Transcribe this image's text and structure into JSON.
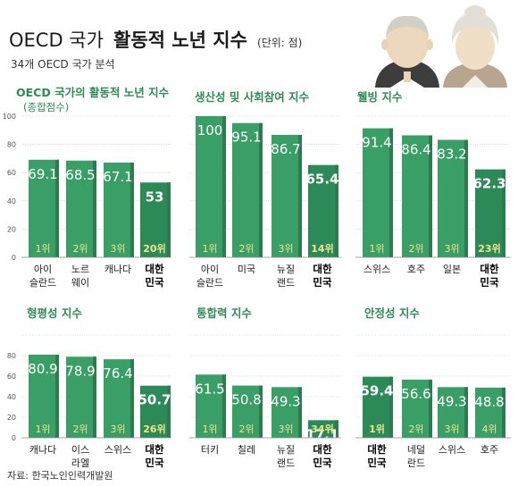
{
  "header": {
    "title_prefix": "OECD 국가",
    "title_bold": "활동적 노년 지수",
    "unit": "(단위: 점)",
    "subtitle": "34개 OECD 국가 분석"
  },
  "source": "자료: 한국노인인력개발원",
  "colors": {
    "bar": "#3a9f67",
    "bar_side": "#2c7c50",
    "bar_korea": "#2b8a57",
    "rank_text": "#f0e68c",
    "heading": "#2e8b57",
    "grid": "#cfcfcf"
  },
  "chart_data": [
    {
      "type": "bar",
      "title": "OECD 국가의 활동적 노년 지수",
      "subtitle": "(종합점수)",
      "categories": [
        "아이\n슬란드",
        "노르\n웨이",
        "캐나다",
        "대한\n민국"
      ],
      "values": [
        69.1,
        68.5,
        67.1,
        53
      ],
      "ranks": [
        "1위",
        "2위",
        "3위",
        "20위"
      ],
      "ylim": [
        0,
        100
      ],
      "yticks": [
        0,
        20,
        40,
        60,
        80,
        100
      ]
    },
    {
      "type": "bar",
      "title": "생산성 및 사회참여 지수",
      "categories": [
        "아이\n슬란드",
        "미국",
        "뉴질\n랜드",
        "대한\n민국"
      ],
      "values": [
        100,
        95.1,
        86.7,
        65.4
      ],
      "ranks": [
        "1위",
        "2위",
        "3위",
        "14위"
      ],
      "ylim": [
        0,
        100
      ]
    },
    {
      "type": "bar",
      "title": "웰빙 지수",
      "categories": [
        "스위스",
        "호주",
        "일본",
        "대한\n민국"
      ],
      "values": [
        91.4,
        86.4,
        83.2,
        62.3
      ],
      "ranks": [
        "1위",
        "2위",
        "3위",
        "23위"
      ],
      "ylim": [
        0,
        100
      ]
    },
    {
      "type": "bar",
      "title": "형평성 지수",
      "categories": [
        "캐나다",
        "이스\n라엘",
        "스위스",
        "대한\n민국"
      ],
      "values": [
        80.9,
        78.9,
        76.4,
        50.7
      ],
      "ranks": [
        "1위",
        "2위",
        "3위",
        "26위"
      ],
      "ylim": [
        0,
        100
      ],
      "yticks": [
        0,
        20,
        40,
        60,
        80
      ]
    },
    {
      "type": "bar",
      "title": "통합력 지수",
      "categories": [
        "터키",
        "칠레",
        "뉴질\n랜드",
        "대한\n민국"
      ],
      "values": [
        61.5,
        50.8,
        49.3,
        17.1
      ],
      "ranks": [
        "1위",
        "2위",
        "3위",
        "34위"
      ],
      "ylim": [
        0,
        100
      ]
    },
    {
      "type": "bar",
      "title": "안정성 지수",
      "categories": [
        "대한\n민국",
        "네덜\n란드",
        "스위스",
        "호주"
      ],
      "values": [
        59.4,
        56.6,
        49.3,
        48.8
      ],
      "ranks": [
        "1위",
        "2위",
        "3위",
        "4위"
      ],
      "ylim": [
        0,
        100
      ]
    }
  ]
}
